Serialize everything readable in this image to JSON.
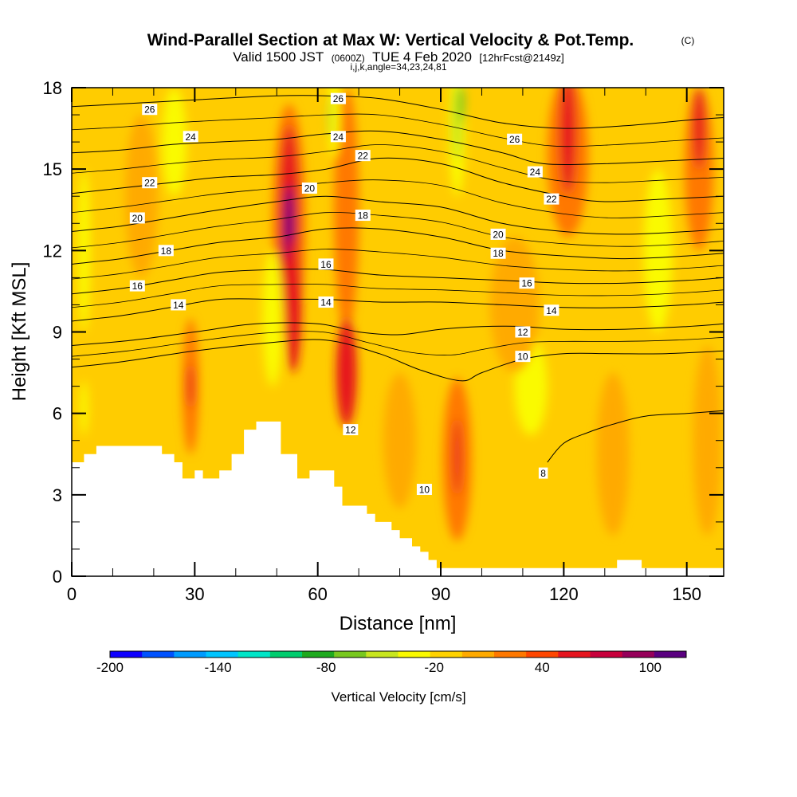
{
  "chart_data": {
    "type": "contour-section",
    "title": "Wind-Parallel Section at Max W: Vertical Velocity & Pot.Temp.",
    "title_mark": "(C)",
    "subtitle_parts": [
      "Valid 1500 JST",
      "(0600Z)",
      "TUE 4 Feb 2020",
      "[12hrFcst@2149z]"
    ],
    "subtitle2": "i,j,k,angle=34,23,24,81",
    "xlabel": "Distance [nm]",
    "ylabel": "Height [Kft MSL]",
    "xlim": [
      0,
      159
    ],
    "ylim": [
      0,
      18
    ],
    "x_ticks": [
      0,
      30,
      60,
      90,
      120,
      150
    ],
    "y_ticks": [
      0,
      3,
      6,
      9,
      12,
      15,
      18
    ],
    "colorbar": {
      "label": "Vertical Velocity [cm/s]",
      "range": [
        -200,
        120
      ],
      "tick_values": [
        -200,
        -140,
        -80,
        -20,
        40,
        100
      ],
      "colors": [
        "#0f00ff",
        "#0052ff",
        "#009bff",
        "#00c5ff",
        "#00e6c8",
        "#00cd6e",
        "#1eaa1e",
        "#78c81e",
        "#c8e61e",
        "#fafa00",
        "#ffd200",
        "#ffaa00",
        "#ff7800",
        "#ff4600",
        "#e6141e",
        "#c8003c",
        "#96005a",
        "#5a0080"
      ]
    },
    "background_color": "#ffcc00",
    "terrain_profile": [
      [
        0,
        4.2
      ],
      [
        3,
        4.2
      ],
      [
        3,
        4.5
      ],
      [
        6,
        4.5
      ],
      [
        6,
        4.8
      ],
      [
        22,
        4.8
      ],
      [
        22,
        4.5
      ],
      [
        25,
        4.5
      ],
      [
        25,
        4.2
      ],
      [
        27,
        4.2
      ],
      [
        27,
        3.6
      ],
      [
        30,
        3.6
      ],
      [
        30,
        3.9
      ],
      [
        32,
        3.9
      ],
      [
        32,
        3.6
      ],
      [
        36,
        3.6
      ],
      [
        36,
        3.9
      ],
      [
        39,
        3.9
      ],
      [
        39,
        4.5
      ],
      [
        42,
        4.5
      ],
      [
        42,
        5.4
      ],
      [
        45,
        5.4
      ],
      [
        45,
        5.7
      ],
      [
        51,
        5.7
      ],
      [
        51,
        4.5
      ],
      [
        55,
        4.5
      ],
      [
        55,
        3.6
      ],
      [
        58,
        3.6
      ],
      [
        58,
        3.9
      ],
      [
        64,
        3.9
      ],
      [
        64,
        3.3
      ],
      [
        66,
        3.3
      ],
      [
        66,
        2.6
      ],
      [
        72,
        2.6
      ],
      [
        72,
        2.3
      ],
      [
        74,
        2.3
      ],
      [
        74,
        2.0
      ],
      [
        78,
        2.0
      ],
      [
        78,
        1.7
      ],
      [
        80,
        1.7
      ],
      [
        80,
        1.4
      ],
      [
        83,
        1.4
      ],
      [
        83,
        1.1
      ],
      [
        85,
        1.1
      ],
      [
        85,
        0.9
      ],
      [
        87,
        0.9
      ],
      [
        87,
        0.6
      ],
      [
        89,
        0.6
      ],
      [
        89,
        0.3
      ],
      [
        133,
        0.3
      ],
      [
        133,
        0.6
      ],
      [
        139,
        0.6
      ],
      [
        139,
        0.3
      ],
      [
        159,
        0.3
      ]
    ],
    "contour_line_color": "#000000",
    "isentropes": [
      {
        "label": "8",
        "points": [
          [
            116,
            4.2
          ],
          [
            120,
            4.9
          ],
          [
            126,
            5.3
          ],
          [
            132,
            5.6
          ],
          [
            140,
            5.9
          ],
          [
            150,
            6.0
          ],
          [
            159,
            6.1
          ]
        ]
      },
      {
        "label": "10",
        "points": [
          [
            0,
            7.7
          ],
          [
            12,
            7.9
          ],
          [
            30,
            8.3
          ],
          [
            48,
            8.6
          ],
          [
            62,
            8.7
          ],
          [
            75,
            8.2
          ],
          [
            85,
            7.6
          ],
          [
            95,
            7.2
          ],
          [
            100,
            7.5
          ],
          [
            110,
            8.0
          ],
          [
            120,
            8.2
          ],
          [
            132,
            8.2
          ],
          [
            145,
            8.2
          ],
          [
            159,
            8.3
          ]
        ]
      },
      {
        "label": "12",
        "points": [
          [
            0,
            8.5
          ],
          [
            15,
            8.7
          ],
          [
            30,
            9.0
          ],
          [
            45,
            9.3
          ],
          [
            60,
            9.3
          ],
          [
            70,
            9.0
          ],
          [
            80,
            8.9
          ],
          [
            90,
            9.1
          ],
          [
            100,
            9.2
          ],
          [
            110,
            9.2
          ],
          [
            120,
            9.1
          ],
          [
            135,
            9.1
          ],
          [
            150,
            9.2
          ],
          [
            159,
            9.3
          ]
        ]
      },
      {
        "label": "14",
        "points": [
          [
            0,
            9.4
          ],
          [
            12,
            9.6
          ],
          [
            24,
            9.9
          ],
          [
            36,
            10.2
          ],
          [
            50,
            10.2
          ],
          [
            62,
            10.2
          ],
          [
            75,
            10.1
          ],
          [
            90,
            10.1
          ],
          [
            105,
            10.0
          ],
          [
            120,
            9.9
          ],
          [
            135,
            9.9
          ],
          [
            150,
            10.0
          ],
          [
            159,
            10.1
          ]
        ]
      },
      {
        "label": "16",
        "points": [
          [
            0,
            10.4
          ],
          [
            12,
            10.6
          ],
          [
            24,
            10.9
          ],
          [
            36,
            11.2
          ],
          [
            50,
            11.3
          ],
          [
            62,
            11.3
          ],
          [
            75,
            11.1
          ],
          [
            90,
            11.0
          ],
          [
            105,
            10.9
          ],
          [
            120,
            10.8
          ],
          [
            135,
            10.8
          ],
          [
            150,
            10.9
          ],
          [
            159,
            11.0
          ]
        ]
      },
      {
        "label": "18",
        "points": [
          [
            0,
            11.5
          ],
          [
            12,
            11.7
          ],
          [
            24,
            12.0
          ],
          [
            36,
            12.3
          ],
          [
            50,
            12.5
          ],
          [
            62,
            12.8
          ],
          [
            75,
            12.8
          ],
          [
            90,
            12.5
          ],
          [
            105,
            12.0
          ],
          [
            120,
            11.8
          ],
          [
            135,
            11.7
          ],
          [
            150,
            11.8
          ],
          [
            159,
            11.9
          ]
        ]
      },
      {
        "label": "20",
        "points": [
          [
            0,
            12.7
          ],
          [
            12,
            12.9
          ],
          [
            24,
            13.2
          ],
          [
            36,
            13.5
          ],
          [
            50,
            13.8
          ],
          [
            62,
            14.0
          ],
          [
            75,
            13.8
          ],
          [
            90,
            13.6
          ],
          [
            105,
            13.0
          ],
          [
            120,
            12.7
          ],
          [
            135,
            12.6
          ],
          [
            150,
            12.7
          ],
          [
            159,
            12.8
          ]
        ]
      },
      {
        "label": "22",
        "points": [
          [
            0,
            14.1
          ],
          [
            12,
            14.3
          ],
          [
            24,
            14.5
          ],
          [
            36,
            14.7
          ],
          [
            50,
            14.8
          ],
          [
            62,
            15.0
          ],
          [
            75,
            15.4
          ],
          [
            90,
            15.2
          ],
          [
            105,
            14.5
          ],
          [
            120,
            14.0
          ],
          [
            130,
            13.8
          ],
          [
            145,
            13.9
          ],
          [
            159,
            14.0
          ]
        ]
      },
      {
        "label": "24",
        "points": [
          [
            0,
            15.6
          ],
          [
            12,
            15.7
          ],
          [
            24,
            15.9
          ],
          [
            36,
            16.0
          ],
          [
            50,
            16.1
          ],
          [
            62,
            16.3
          ],
          [
            75,
            16.4
          ],
          [
            90,
            16.1
          ],
          [
            105,
            15.6
          ],
          [
            115,
            15.2
          ],
          [
            130,
            15.2
          ],
          [
            145,
            15.3
          ],
          [
            159,
            15.4
          ]
        ]
      },
      {
        "label": "26",
        "points": [
          [
            0,
            17.3
          ],
          [
            12,
            17.4
          ],
          [
            24,
            17.5
          ],
          [
            36,
            17.6
          ],
          [
            50,
            17.7
          ],
          [
            62,
            17.7
          ],
          [
            75,
            17.6
          ],
          [
            90,
            17.2
          ],
          [
            105,
            16.7
          ],
          [
            120,
            16.5
          ],
          [
            135,
            16.6
          ],
          [
            150,
            16.8
          ],
          [
            159,
            16.9
          ]
        ]
      }
    ],
    "contour_labels": [
      {
        "text": "26",
        "x": 19,
        "y": 17.2
      },
      {
        "text": "24",
        "x": 29,
        "y": 16.2
      },
      {
        "text": "22",
        "x": 19,
        "y": 14.5
      },
      {
        "text": "20",
        "x": 16,
        "y": 13.2
      },
      {
        "text": "18",
        "x": 23,
        "y": 12.0
      },
      {
        "text": "16",
        "x": 16,
        "y": 10.7
      },
      {
        "text": "14",
        "x": 26,
        "y": 10.0
      },
      {
        "text": "26",
        "x": 65,
        "y": 17.6
      },
      {
        "text": "24",
        "x": 65,
        "y": 16.2
      },
      {
        "text": "22",
        "x": 71,
        "y": 15.5
      },
      {
        "text": "20",
        "x": 58,
        "y": 14.3
      },
      {
        "text": "18",
        "x": 71,
        "y": 13.3
      },
      {
        "text": "16",
        "x": 62,
        "y": 11.5
      },
      {
        "text": "14",
        "x": 62,
        "y": 10.1
      },
      {
        "text": "12",
        "x": 68,
        "y": 5.4
      },
      {
        "text": "10",
        "x": 86,
        "y": 3.2
      },
      {
        "text": "26",
        "x": 108,
        "y": 16.1
      },
      {
        "text": "24",
        "x": 113,
        "y": 14.9
      },
      {
        "text": "22",
        "x": 117,
        "y": 13.9
      },
      {
        "text": "20",
        "x": 104,
        "y": 12.6
      },
      {
        "text": "18",
        "x": 104,
        "y": 11.9
      },
      {
        "text": "16",
        "x": 111,
        "y": 10.8
      },
      {
        "text": "14",
        "x": 117,
        "y": 9.8
      },
      {
        "text": "12",
        "x": 110,
        "y": 9.0
      },
      {
        "text": "10",
        "x": 110,
        "y": 8.1
      },
      {
        "text": "8",
        "x": 115,
        "y": 3.8
      }
    ],
    "velocity_features": [
      {
        "cx": 53,
        "cy": 13.0,
        "rx": 4.0,
        "ry": 4.4,
        "color": "#ff7800"
      },
      {
        "cx": 53,
        "cy": 13.0,
        "rx": 2.6,
        "ry": 3.6,
        "color": "#e6141e"
      },
      {
        "cx": 53,
        "cy": 12.8,
        "rx": 1.0,
        "ry": 1.6,
        "color": "#5a0080"
      },
      {
        "cx": 54,
        "cy": 10.0,
        "rx": 2.0,
        "ry": 2.5,
        "color": "#e6141e"
      },
      {
        "cx": 67,
        "cy": 13.5,
        "rx": 3.0,
        "ry": 4.5,
        "color": "#ff7800"
      },
      {
        "cx": 67,
        "cy": 7.5,
        "rx": 2.5,
        "ry": 2.0,
        "color": "#e6141e"
      },
      {
        "cx": 121,
        "cy": 15.5,
        "rx": 5.0,
        "ry": 3.0,
        "color": "#ff7800"
      },
      {
        "cx": 121,
        "cy": 16.3,
        "rx": 2.0,
        "ry": 2.2,
        "color": "#e6141e"
      },
      {
        "cx": 153,
        "cy": 15.0,
        "rx": 3.5,
        "ry": 3.0,
        "color": "#ff7800"
      },
      {
        "cx": 153,
        "cy": 16.5,
        "rx": 1.5,
        "ry": 1.5,
        "color": "#e6141e"
      },
      {
        "cx": 94,
        "cy": 4.3,
        "rx": 3.5,
        "ry": 3.0,
        "color": "#ff7800"
      },
      {
        "cx": 94,
        "cy": 4.4,
        "rx": 0.9,
        "ry": 1.4,
        "color": "#e6141e"
      },
      {
        "cx": 29,
        "cy": 7.0,
        "rx": 2.0,
        "ry": 2.5,
        "color": "#ff7800"
      },
      {
        "cx": 29,
        "cy": 7.0,
        "rx": 0.7,
        "ry": 0.8,
        "color": "#e6141e"
      },
      {
        "cx": 94,
        "cy": 16.5,
        "rx": 2.0,
        "ry": 2.5,
        "color": "#fafa00"
      },
      {
        "cx": 94,
        "cy": 16.7,
        "rx": 1.2,
        "ry": 1.4,
        "color": "#c8e61e"
      },
      {
        "cx": 95,
        "cy": 17.4,
        "rx": 0.8,
        "ry": 0.7,
        "color": "#78c81e"
      },
      {
        "cx": 64,
        "cy": 17.0,
        "rx": 1.5,
        "ry": 1.6,
        "color": "#fafa00"
      },
      {
        "cx": 63,
        "cy": 16.9,
        "rx": 0.6,
        "ry": 0.8,
        "color": "#c8e61e"
      },
      {
        "cx": 49,
        "cy": 9.5,
        "rx": 2.5,
        "ry": 2.5,
        "color": "#fafa00"
      },
      {
        "cx": 25,
        "cy": 16.0,
        "rx": 3.0,
        "ry": 2.0,
        "color": "#fafa00"
      },
      {
        "cx": 3,
        "cy": 12.0,
        "rx": 1.5,
        "ry": 3.0,
        "color": "#fafa00"
      },
      {
        "cx": 3,
        "cy": 6.2,
        "rx": 1.0,
        "ry": 1.0,
        "color": "#fafa00"
      },
      {
        "cx": 112,
        "cy": 7.0,
        "rx": 4.0,
        "ry": 1.8,
        "color": "#fafa00"
      },
      {
        "cx": 143,
        "cy": 12.0,
        "rx": 3.5,
        "ry": 3.0,
        "color": "#fafa00"
      },
      {
        "cx": 108,
        "cy": 10.0,
        "rx": 6.0,
        "ry": 2.5,
        "color": "#ffaa00"
      },
      {
        "cx": 132,
        "cy": 4.5,
        "rx": 4.0,
        "ry": 3.0,
        "color": "#ffaa00"
      },
      {
        "cx": 155,
        "cy": 5.0,
        "rx": 3.5,
        "ry": 3.5,
        "color": "#ffaa00"
      },
      {
        "cx": 17,
        "cy": 14.0,
        "rx": 4.0,
        "ry": 3.0,
        "color": "#ffaa00"
      },
      {
        "cx": 80,
        "cy": 5.0,
        "rx": 4.0,
        "ry": 2.5,
        "color": "#ffaa00"
      }
    ]
  }
}
